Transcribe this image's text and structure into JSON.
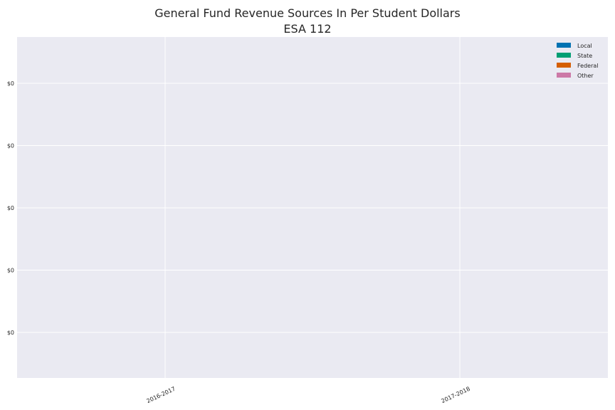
{
  "chart_data": {
    "type": "bar",
    "title": "General Fund Revenue Sources In Per Student Dollars",
    "subtitle": "ESA 112",
    "categories": [
      "2016-2017",
      "2017-2018"
    ],
    "series": [
      {
        "name": "Local",
        "color": "#0072b2",
        "values": [
          0,
          0
        ]
      },
      {
        "name": "State",
        "color": "#009e73",
        "values": [
          0,
          0
        ]
      },
      {
        "name": "Federal",
        "color": "#d55e00",
        "values": [
          0,
          0
        ]
      },
      {
        "name": "Other",
        "color": "#cc79a7",
        "values": [
          0,
          0
        ]
      }
    ],
    "y_tick_labels": [
      "$0",
      "$0",
      "$0",
      "$0",
      "$0"
    ],
    "xlabel": "",
    "ylabel": "",
    "grid": true,
    "legend_position": "top-right",
    "background_color": "#eaeaf2"
  }
}
